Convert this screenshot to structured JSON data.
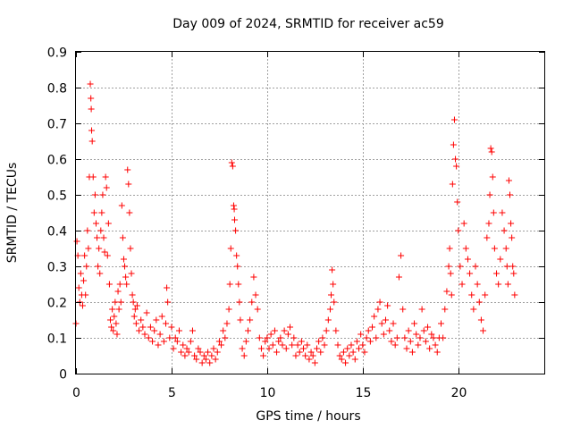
{
  "chart_data": {
    "type": "scatter",
    "title": "Day 009 of 2024, SRMTID for receiver ac59",
    "xlabel": "GPS time / hours",
    "ylabel": "SRMTID / TECUs",
    "xlim": [
      0,
      24.5
    ],
    "ylim": [
      0,
      0.9
    ],
    "x_ticks": [
      0,
      5,
      10,
      15,
      20
    ],
    "x_tick_labels": [
      "0",
      "5",
      "10",
      "15",
      "20"
    ],
    "y_ticks": [
      0,
      0.1,
      0.2,
      0.3,
      0.4,
      0.5,
      0.6,
      0.7,
      0.8,
      0.9
    ],
    "y_tick_labels": [
      "0",
      "0.1",
      "0.2",
      "0.3",
      "0.4",
      "0.5",
      "0.6",
      "0.7",
      "0.8",
      "0.9"
    ],
    "grid": true,
    "marker": "+",
    "colors": {
      "series": "#ff0000",
      "grid": "#a0a0a0",
      "axis": "#000000"
    },
    "series": [
      {
        "name": "SRMTID",
        "points": [
          [
            0.0,
            0.14
          ],
          [
            0.05,
            0.37
          ],
          [
            0.1,
            0.33
          ],
          [
            0.15,
            0.24
          ],
          [
            0.2,
            0.2
          ],
          [
            0.25,
            0.28
          ],
          [
            0.3,
            0.22
          ],
          [
            0.35,
            0.19
          ],
          [
            0.4,
            0.26
          ],
          [
            0.45,
            0.33
          ],
          [
            0.5,
            0.22
          ],
          [
            0.55,
            0.3
          ],
          [
            0.6,
            0.4
          ],
          [
            0.65,
            0.35
          ],
          [
            0.7,
            0.55
          ],
          [
            0.75,
            0.81
          ],
          [
            0.78,
            0.77
          ],
          [
            0.8,
            0.74
          ],
          [
            0.82,
            0.68
          ],
          [
            0.85,
            0.65
          ],
          [
            0.9,
            0.55
          ],
          [
            0.95,
            0.45
          ],
          [
            1.0,
            0.5
          ],
          [
            1.05,
            0.42
          ],
          [
            1.1,
            0.38
          ],
          [
            1.15,
            0.3
          ],
          [
            1.2,
            0.35
          ],
          [
            1.25,
            0.28
          ],
          [
            1.3,
            0.4
          ],
          [
            1.35,
            0.45
          ],
          [
            1.4,
            0.5
          ],
          [
            1.45,
            0.38
          ],
          [
            1.5,
            0.34
          ],
          [
            1.55,
            0.55
          ],
          [
            1.6,
            0.52
          ],
          [
            1.65,
            0.33
          ],
          [
            1.7,
            0.42
          ],
          [
            1.75,
            0.25
          ],
          [
            1.8,
            0.15
          ],
          [
            1.85,
            0.13
          ],
          [
            1.9,
            0.18
          ],
          [
            1.95,
            0.12
          ],
          [
            2.0,
            0.16
          ],
          [
            2.05,
            0.2
          ],
          [
            2.1,
            0.14
          ],
          [
            2.15,
            0.11
          ],
          [
            2.2,
            0.23
          ],
          [
            2.25,
            0.18
          ],
          [
            2.3,
            0.25
          ],
          [
            2.35,
            0.2
          ],
          [
            2.4,
            0.47
          ],
          [
            2.45,
            0.38
          ],
          [
            2.5,
            0.32
          ],
          [
            2.55,
            0.3
          ],
          [
            2.6,
            0.27
          ],
          [
            2.65,
            0.25
          ],
          [
            2.7,
            0.57
          ],
          [
            2.75,
            0.53
          ],
          [
            2.8,
            0.45
          ],
          [
            2.85,
            0.35
          ],
          [
            2.9,
            0.28
          ],
          [
            2.95,
            0.22
          ],
          [
            3.0,
            0.2
          ],
          [
            3.05,
            0.16
          ],
          [
            3.1,
            0.18
          ],
          [
            3.15,
            0.14
          ],
          [
            3.2,
            0.19
          ],
          [
            3.3,
            0.12
          ],
          [
            3.4,
            0.15
          ],
          [
            3.5,
            0.13
          ],
          [
            3.6,
            0.11
          ],
          [
            3.7,
            0.17
          ],
          [
            3.8,
            0.1
          ],
          [
            3.9,
            0.13
          ],
          [
            4.0,
            0.09
          ],
          [
            4.1,
            0.12
          ],
          [
            4.2,
            0.15
          ],
          [
            4.3,
            0.08
          ],
          [
            4.4,
            0.11
          ],
          [
            4.5,
            0.16
          ],
          [
            4.6,
            0.09
          ],
          [
            4.7,
            0.14
          ],
          [
            4.75,
            0.24
          ],
          [
            4.8,
            0.2
          ],
          [
            4.9,
            0.1
          ],
          [
            5.0,
            0.13
          ],
          [
            5.1,
            0.07
          ],
          [
            5.2,
            0.1
          ],
          [
            5.3,
            0.09
          ],
          [
            5.4,
            0.12
          ],
          [
            5.5,
            0.06
          ],
          [
            5.6,
            0.08
          ],
          [
            5.7,
            0.05
          ],
          [
            5.8,
            0.07
          ],
          [
            5.9,
            0.06
          ],
          [
            6.0,
            0.09
          ],
          [
            6.1,
            0.12
          ],
          [
            6.2,
            0.05
          ],
          [
            6.3,
            0.04
          ],
          [
            6.4,
            0.07
          ],
          [
            6.5,
            0.06
          ],
          [
            6.6,
            0.03
          ],
          [
            6.7,
            0.05
          ],
          [
            6.8,
            0.04
          ],
          [
            6.9,
            0.06
          ],
          [
            7.0,
            0.03
          ],
          [
            7.1,
            0.05
          ],
          [
            7.2,
            0.07
          ],
          [
            7.3,
            0.04
          ],
          [
            7.4,
            0.06
          ],
          [
            7.5,
            0.09
          ],
          [
            7.6,
            0.08
          ],
          [
            7.7,
            0.12
          ],
          [
            7.8,
            0.1
          ],
          [
            7.9,
            0.14
          ],
          [
            8.0,
            0.18
          ],
          [
            8.05,
            0.25
          ],
          [
            8.1,
            0.35
          ],
          [
            8.15,
            0.59
          ],
          [
            8.2,
            0.58
          ],
          [
            8.25,
            0.47
          ],
          [
            8.28,
            0.46
          ],
          [
            8.3,
            0.43
          ],
          [
            8.35,
            0.4
          ],
          [
            8.4,
            0.33
          ],
          [
            8.45,
            0.3
          ],
          [
            8.5,
            0.25
          ],
          [
            8.55,
            0.2
          ],
          [
            8.6,
            0.15
          ],
          [
            8.7,
            0.07
          ],
          [
            8.8,
            0.05
          ],
          [
            8.9,
            0.09
          ],
          [
            9.0,
            0.12
          ],
          [
            9.1,
            0.15
          ],
          [
            9.2,
            0.2
          ],
          [
            9.3,
            0.27
          ],
          [
            9.4,
            0.22
          ],
          [
            9.5,
            0.18
          ],
          [
            9.6,
            0.1
          ],
          [
            9.7,
            0.07
          ],
          [
            9.8,
            0.05
          ],
          [
            9.9,
            0.09
          ],
          [
            10.0,
            0.1
          ],
          [
            10.1,
            0.07
          ],
          [
            10.2,
            0.11
          ],
          [
            10.3,
            0.08
          ],
          [
            10.4,
            0.12
          ],
          [
            10.5,
            0.06
          ],
          [
            10.6,
            0.09
          ],
          [
            10.7,
            0.1
          ],
          [
            10.8,
            0.08
          ],
          [
            10.9,
            0.12
          ],
          [
            11.0,
            0.07
          ],
          [
            11.1,
            0.11
          ],
          [
            11.2,
            0.13
          ],
          [
            11.3,
            0.08
          ],
          [
            11.4,
            0.1
          ],
          [
            11.5,
            0.05
          ],
          [
            11.6,
            0.08
          ],
          [
            11.7,
            0.06
          ],
          [
            11.8,
            0.09
          ],
          [
            11.9,
            0.07
          ],
          [
            12.0,
            0.05
          ],
          [
            12.1,
            0.08
          ],
          [
            12.2,
            0.04
          ],
          [
            12.3,
            0.06
          ],
          [
            12.4,
            0.05
          ],
          [
            12.5,
            0.03
          ],
          [
            12.6,
            0.07
          ],
          [
            12.7,
            0.09
          ],
          [
            12.8,
            0.06
          ],
          [
            12.9,
            0.1
          ],
          [
            13.0,
            0.08
          ],
          [
            13.1,
            0.12
          ],
          [
            13.2,
            0.15
          ],
          [
            13.3,
            0.18
          ],
          [
            13.35,
            0.22
          ],
          [
            13.4,
            0.29
          ],
          [
            13.45,
            0.25
          ],
          [
            13.5,
            0.2
          ],
          [
            13.6,
            0.12
          ],
          [
            13.7,
            0.08
          ],
          [
            13.8,
            0.05
          ],
          [
            13.9,
            0.04
          ],
          [
            14.0,
            0.06
          ],
          [
            14.1,
            0.03
          ],
          [
            14.2,
            0.07
          ],
          [
            14.3,
            0.05
          ],
          [
            14.4,
            0.08
          ],
          [
            14.5,
            0.06
          ],
          [
            14.6,
            0.04
          ],
          [
            14.7,
            0.09
          ],
          [
            14.8,
            0.07
          ],
          [
            14.9,
            0.11
          ],
          [
            15.0,
            0.08
          ],
          [
            15.1,
            0.06
          ],
          [
            15.2,
            0.1
          ],
          [
            15.3,
            0.12
          ],
          [
            15.4,
            0.09
          ],
          [
            15.5,
            0.13
          ],
          [
            15.6,
            0.16
          ],
          [
            15.7,
            0.1
          ],
          [
            15.8,
            0.18
          ],
          [
            15.9,
            0.2
          ],
          [
            16.0,
            0.14
          ],
          [
            16.1,
            0.11
          ],
          [
            16.2,
            0.15
          ],
          [
            16.3,
            0.19
          ],
          [
            16.4,
            0.12
          ],
          [
            16.5,
            0.09
          ],
          [
            16.6,
            0.14
          ],
          [
            16.7,
            0.08
          ],
          [
            16.8,
            0.1
          ],
          [
            16.9,
            0.27
          ],
          [
            17.0,
            0.33
          ],
          [
            17.1,
            0.18
          ],
          [
            17.2,
            0.1
          ],
          [
            17.3,
            0.07
          ],
          [
            17.4,
            0.12
          ],
          [
            17.5,
            0.09
          ],
          [
            17.6,
            0.06
          ],
          [
            17.7,
            0.14
          ],
          [
            17.8,
            0.11
          ],
          [
            17.9,
            0.08
          ],
          [
            18.0,
            0.1
          ],
          [
            18.1,
            0.18
          ],
          [
            18.2,
            0.12
          ],
          [
            18.3,
            0.09
          ],
          [
            18.4,
            0.13
          ],
          [
            18.5,
            0.07
          ],
          [
            18.6,
            0.11
          ],
          [
            18.7,
            0.1
          ],
          [
            18.8,
            0.08
          ],
          [
            18.9,
            0.06
          ],
          [
            19.0,
            0.1
          ],
          [
            19.1,
            0.14
          ],
          [
            19.2,
            0.1
          ],
          [
            19.3,
            0.18
          ],
          [
            19.4,
            0.23
          ],
          [
            19.5,
            0.3
          ],
          [
            19.55,
            0.35
          ],
          [
            19.6,
            0.28
          ],
          [
            19.65,
            0.22
          ],
          [
            19.7,
            0.53
          ],
          [
            19.75,
            0.64
          ],
          [
            19.8,
            0.71
          ],
          [
            19.85,
            0.6
          ],
          [
            19.9,
            0.58
          ],
          [
            19.95,
            0.48
          ],
          [
            20.0,
            0.4
          ],
          [
            20.1,
            0.3
          ],
          [
            20.2,
            0.25
          ],
          [
            20.3,
            0.42
          ],
          [
            20.4,
            0.35
          ],
          [
            20.5,
            0.32
          ],
          [
            20.6,
            0.28
          ],
          [
            20.7,
            0.22
          ],
          [
            20.8,
            0.18
          ],
          [
            20.9,
            0.3
          ],
          [
            21.0,
            0.25
          ],
          [
            21.1,
            0.2
          ],
          [
            21.2,
            0.15
          ],
          [
            21.3,
            0.12
          ],
          [
            21.4,
            0.22
          ],
          [
            21.5,
            0.38
          ],
          [
            21.6,
            0.42
          ],
          [
            21.65,
            0.5
          ],
          [
            21.7,
            0.63
          ],
          [
            21.75,
            0.62
          ],
          [
            21.8,
            0.55
          ],
          [
            21.85,
            0.45
          ],
          [
            21.9,
            0.35
          ],
          [
            22.0,
            0.28
          ],
          [
            22.1,
            0.25
          ],
          [
            22.2,
            0.32
          ],
          [
            22.3,
            0.45
          ],
          [
            22.4,
            0.4
          ],
          [
            22.5,
            0.35
          ],
          [
            22.55,
            0.3
          ],
          [
            22.6,
            0.25
          ],
          [
            22.65,
            0.54
          ],
          [
            22.7,
            0.5
          ],
          [
            22.75,
            0.42
          ],
          [
            22.8,
            0.38
          ],
          [
            22.85,
            0.3
          ],
          [
            22.9,
            0.28
          ],
          [
            22.95,
            0.22
          ]
        ]
      }
    ]
  }
}
